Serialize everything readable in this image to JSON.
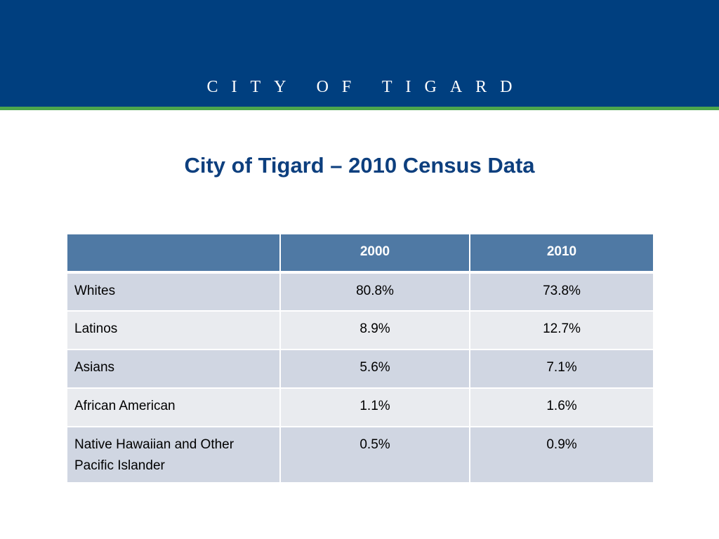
{
  "banner": {
    "title": "CITY OF TIGARD"
  },
  "slide": {
    "title": "City of Tigard – 2010 Census Data"
  },
  "table": {
    "headers": [
      "",
      "2000",
      "2010"
    ],
    "rows": [
      {
        "label": "Whites",
        "y2000": "80.8%",
        "y2010": "73.8%"
      },
      {
        "label": "Latinos",
        "y2000": "8.9%",
        "y2010": "12.7%"
      },
      {
        "label": "Asians",
        "y2000": "5.6%",
        "y2010": "7.1%"
      },
      {
        "label": "African American",
        "y2000": "1.1%",
        "y2010": "1.6%"
      },
      {
        "label": "Native Hawaiian and Other Pacific Islander",
        "y2000": "0.5%",
        "y2010": "0.9%"
      }
    ]
  },
  "colors": {
    "banner": "#003f7f",
    "stripe": "#4ca64c",
    "title": "#0d3f7e",
    "header": "#4f79a4",
    "row_dark": "#d0d6e2",
    "row_light": "#e9ebef"
  }
}
